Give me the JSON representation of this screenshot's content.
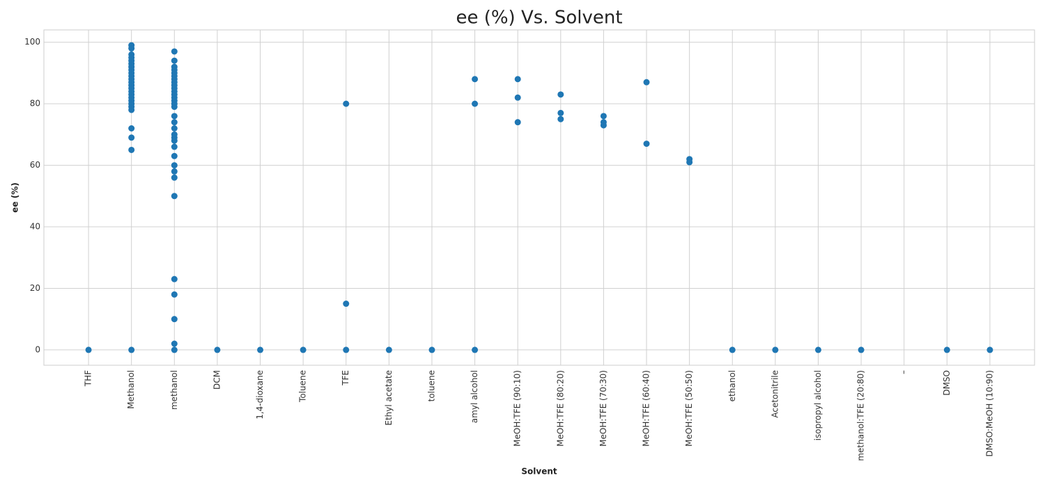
{
  "chart_data": {
    "type": "scatter",
    "title": "ee (%) Vs. Solvent",
    "x_label": "Solvent",
    "y_label": "ee (%)",
    "categories": [
      "THF",
      "Methanol",
      "methanol",
      "DCM",
      "1,4-dioxane",
      "Toluene",
      "TFE",
      "Ethyl acetate",
      "toluene",
      "amyl alcohol",
      "MeOH:TFE (90:10)",
      "MeOH:TFE (80:20)",
      "MeOH:TFE (70:30)",
      "MeOH:TFE (60:40)",
      "MeOH:TFE (50:50)",
      "ethanol",
      "Acetonitrile",
      "isopropyl alcohol",
      "methanol:TFE (20:80)",
      "–",
      "DMSO",
      "DMSO:MeOH (10:90)"
    ],
    "values": [
      [
        0
      ],
      [
        99,
        98,
        96,
        95,
        94,
        93,
        92,
        91,
        90,
        89,
        88,
        87,
        86,
        85,
        84,
        83,
        82,
        81,
        80,
        79,
        78,
        72,
        69,
        65,
        0
      ],
      [
        97,
        94,
        92,
        91,
        90,
        89,
        88,
        87,
        86,
        85,
        84,
        83,
        82,
        81,
        80,
        79,
        76,
        74,
        72,
        70,
        69,
        68,
        66,
        63,
        60,
        58,
        56,
        50,
        23,
        18,
        10,
        2,
        0
      ],
      [
        0
      ],
      [
        0
      ],
      [
        0
      ],
      [
        80,
        15,
        0
      ],
      [
        0
      ],
      [
        0
      ],
      [
        88,
        80,
        0
      ],
      [
        88,
        82,
        74
      ],
      [
        83,
        77,
        75
      ],
      [
        76,
        74,
        73
      ],
      [
        87,
        67
      ],
      [
        62,
        61
      ],
      [
        0
      ],
      [
        0
      ],
      [
        0
      ],
      [
        0
      ],
      [],
      [
        0
      ],
      [
        0
      ]
    ],
    "color": "#1f77b4",
    "ylim": [
      -5,
      104
    ],
    "yticks": [
      0,
      20,
      40,
      60,
      80,
      100
    ],
    "grid": true
  }
}
